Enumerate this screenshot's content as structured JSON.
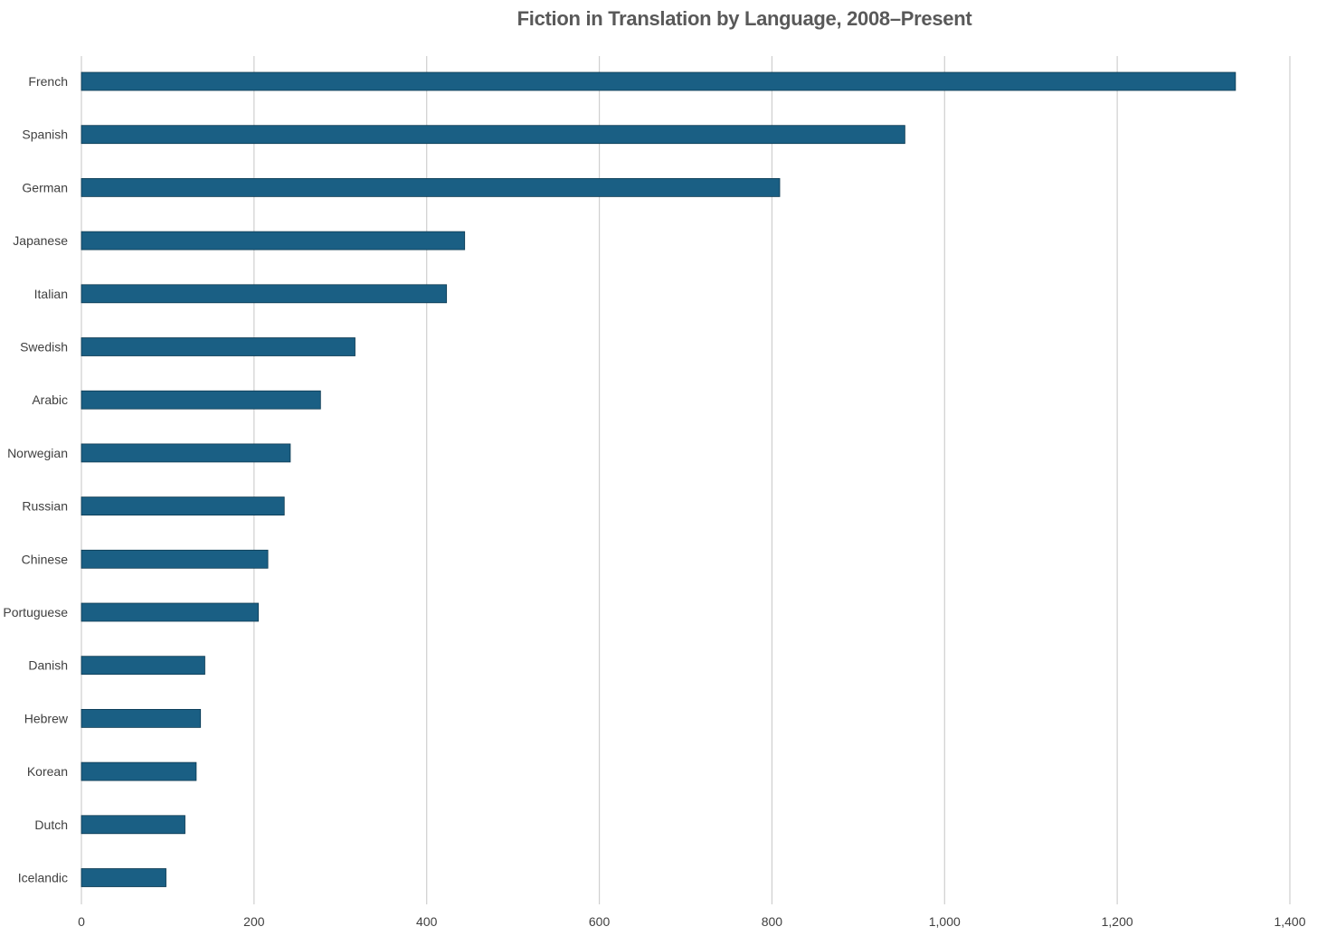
{
  "chart_data": {
    "type": "bar",
    "orientation": "horizontal",
    "title": "Fiction in Translation by Language, 2008–Present",
    "xlabel": "",
    "ylabel": "",
    "categories": [
      "French",
      "Spanish",
      "German",
      "Japanese",
      "Italian",
      "Swedish",
      "Arabic",
      "Norwegian",
      "Russian",
      "Chinese",
      "Portuguese",
      "Danish",
      "Hebrew",
      "Korean",
      "Dutch",
      "Icelandic"
    ],
    "values": [
      1337,
      954,
      809,
      444,
      423,
      317,
      277,
      242,
      235,
      216,
      205,
      143,
      138,
      133,
      120,
      98
    ],
    "xlim": [
      0,
      1400
    ],
    "x_ticks": [
      0,
      200,
      400,
      600,
      800,
      1000,
      1200,
      1400
    ],
    "x_tick_labels": [
      "0",
      "200",
      "400",
      "600",
      "800",
      "1,000",
      "1,200",
      "1,400"
    ],
    "grid": "vertical",
    "legend": "none",
    "colors": {
      "bar": "#1a5f84",
      "grid": "#cfcfcf",
      "text": "#404040",
      "title": "#595959"
    }
  }
}
